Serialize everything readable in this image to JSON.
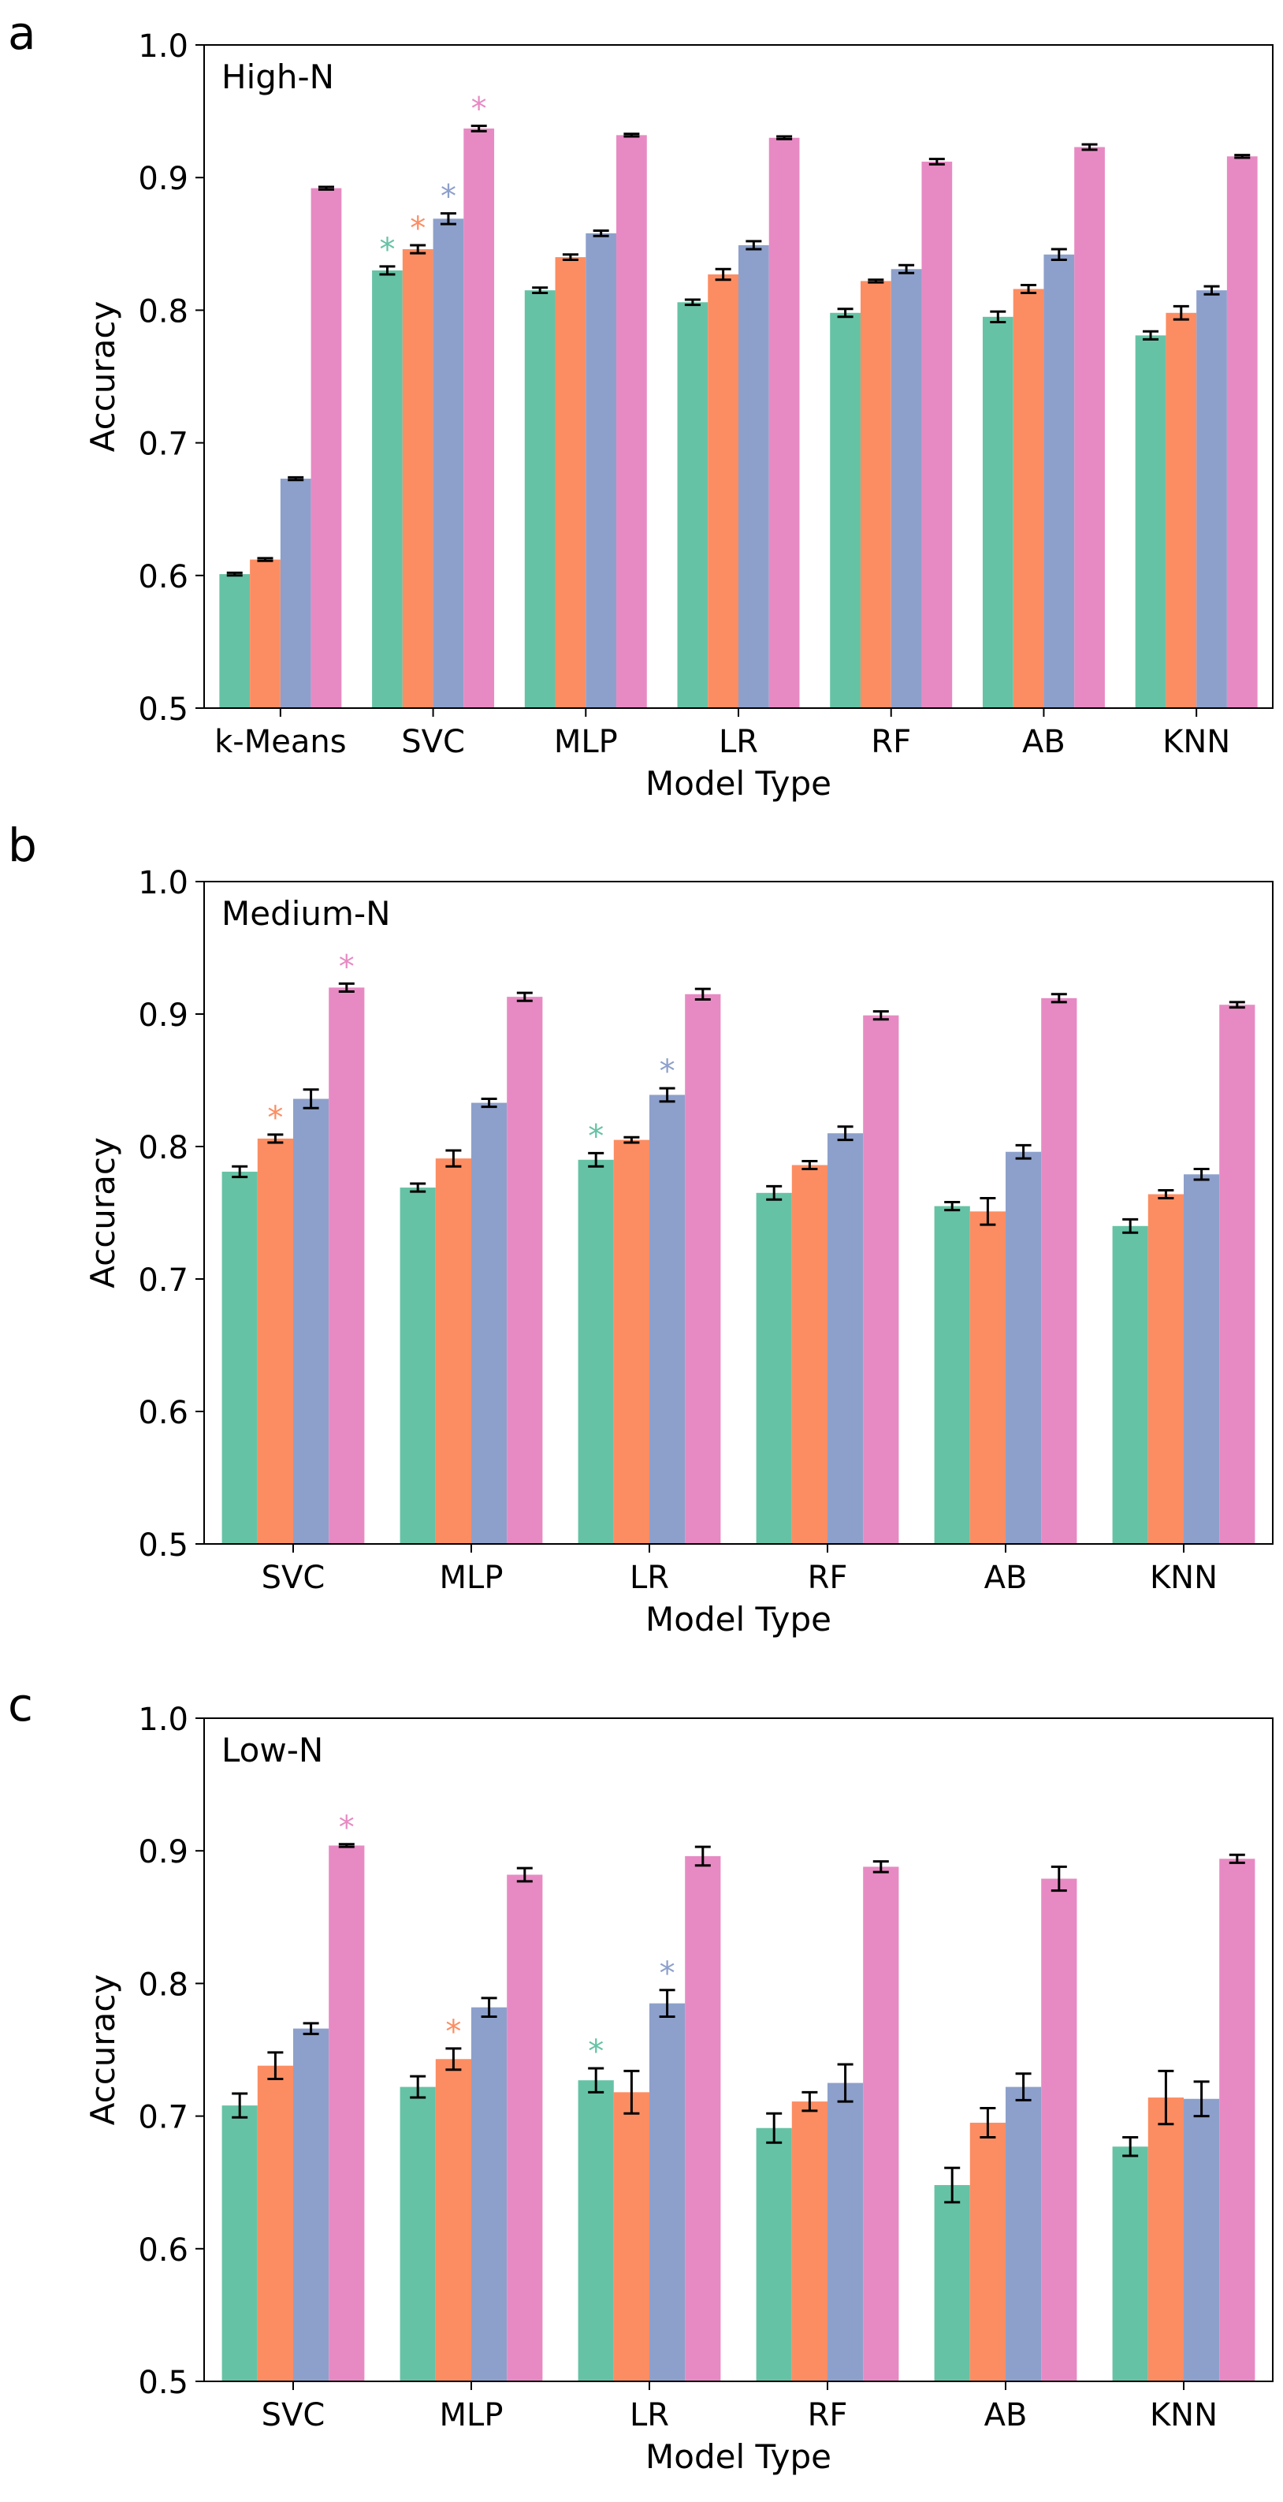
{
  "colors": [
    "#66c2a5",
    "#fc8d62",
    "#8da0cb",
    "#e78ac3"
  ],
  "chart_data": [
    {
      "type": "bar",
      "panel_letter": "a",
      "title": "High-N",
      "xlabel": "Model Type",
      "ylabel": "Accuracy",
      "ylim": [
        0.5,
        1.0
      ],
      "yticks": [
        "0.5",
        "0.6",
        "0.7",
        "0.8",
        "0.9",
        "1.0"
      ],
      "categories": [
        "k-Means",
        "SVC",
        "MLP",
        "LR",
        "RF",
        "AB",
        "KNN"
      ],
      "series": [
        {
          "values": [
            0.601,
            0.83,
            0.815,
            0.806,
            0.798,
            0.795,
            0.781
          ],
          "errors": [
            0.001,
            0.003,
            0.002,
            0.002,
            0.003,
            0.004,
            0.003
          ]
        },
        {
          "values": [
            0.612,
            0.846,
            0.84,
            0.827,
            0.822,
            0.816,
            0.798
          ],
          "errors": [
            0.001,
            0.003,
            0.002,
            0.004,
            0.001,
            0.003,
            0.005
          ]
        },
        {
          "values": [
            0.673,
            0.869,
            0.858,
            0.849,
            0.831,
            0.842,
            0.815
          ],
          "errors": [
            0.001,
            0.004,
            0.002,
            0.003,
            0.003,
            0.004,
            0.003
          ]
        },
        {
          "values": [
            0.892,
            0.937,
            0.932,
            0.93,
            0.912,
            0.923,
            0.916
          ],
          "errors": [
            0.001,
            0.002,
            0.001,
            0.001,
            0.002,
            0.002,
            0.001
          ]
        }
      ],
      "stars": [
        {
          "category": 1,
          "series": 0,
          "label": "*"
        },
        {
          "category": 1,
          "series": 1,
          "label": "*"
        },
        {
          "category": 1,
          "series": 2,
          "label": "*"
        },
        {
          "category": 1,
          "series": 3,
          "label": "*"
        }
      ]
    },
    {
      "type": "bar",
      "panel_letter": "b",
      "title": "Medium-N",
      "xlabel": "Model Type",
      "ylabel": "Accuracy",
      "ylim": [
        0.5,
        1.0
      ],
      "yticks": [
        "0.5",
        "0.6",
        "0.7",
        "0.8",
        "0.9",
        "1.0"
      ],
      "categories": [
        "SVC",
        "MLP",
        "LR",
        "RF",
        "AB",
        "KNN"
      ],
      "series": [
        {
          "values": [
            0.781,
            0.769,
            0.79,
            0.765,
            0.755,
            0.74
          ],
          "errors": [
            0.004,
            0.003,
            0.005,
            0.005,
            0.003,
            0.005
          ]
        },
        {
          "values": [
            0.806,
            0.791,
            0.805,
            0.786,
            0.751,
            0.764
          ],
          "errors": [
            0.003,
            0.006,
            0.002,
            0.003,
            0.01,
            0.003
          ]
        },
        {
          "values": [
            0.836,
            0.833,
            0.839,
            0.81,
            0.796,
            0.779
          ],
          "errors": [
            0.007,
            0.003,
            0.005,
            0.005,
            0.005,
            0.004
          ]
        },
        {
          "values": [
            0.92,
            0.913,
            0.915,
            0.899,
            0.912,
            0.907
          ],
          "errors": [
            0.003,
            0.003,
            0.004,
            0.003,
            0.003,
            0.002
          ]
        }
      ],
      "stars": [
        {
          "category": 0,
          "series": 1,
          "label": "*"
        },
        {
          "category": 0,
          "series": 3,
          "label": "*"
        },
        {
          "category": 2,
          "series": 0,
          "label": "*"
        },
        {
          "category": 2,
          "series": 2,
          "label": "*"
        }
      ]
    },
    {
      "type": "bar",
      "panel_letter": "c",
      "title": "Low-N",
      "xlabel": "Model Type",
      "ylabel": "Accuracy",
      "ylim": [
        0.5,
        1.0
      ],
      "yticks": [
        "0.5",
        "0.6",
        "0.7",
        "0.8",
        "0.9",
        "1.0"
      ],
      "categories": [
        "SVC",
        "MLP",
        "LR",
        "RF",
        "AB",
        "KNN"
      ],
      "series": [
        {
          "values": [
            0.708,
            0.722,
            0.727,
            0.691,
            0.648,
            0.677
          ],
          "errors": [
            0.009,
            0.008,
            0.009,
            0.011,
            0.013,
            0.007
          ]
        },
        {
          "values": [
            0.738,
            0.743,
            0.718,
            0.711,
            0.695,
            0.714
          ],
          "errors": [
            0.01,
            0.008,
            0.016,
            0.007,
            0.011,
            0.02
          ]
        },
        {
          "values": [
            0.766,
            0.782,
            0.785,
            0.725,
            0.722,
            0.713
          ],
          "errors": [
            0.004,
            0.007,
            0.01,
            0.014,
            0.01,
            0.013
          ]
        },
        {
          "values": [
            0.904,
            0.882,
            0.896,
            0.888,
            0.879,
            0.894
          ],
          "errors": [
            0.001,
            0.005,
            0.007,
            0.004,
            0.009,
            0.003
          ]
        }
      ],
      "stars": [
        {
          "category": 0,
          "series": 3,
          "label": "*"
        },
        {
          "category": 1,
          "series": 1,
          "label": "*"
        },
        {
          "category": 2,
          "series": 0,
          "label": "*"
        },
        {
          "category": 2,
          "series": 2,
          "label": "*"
        }
      ]
    }
  ]
}
